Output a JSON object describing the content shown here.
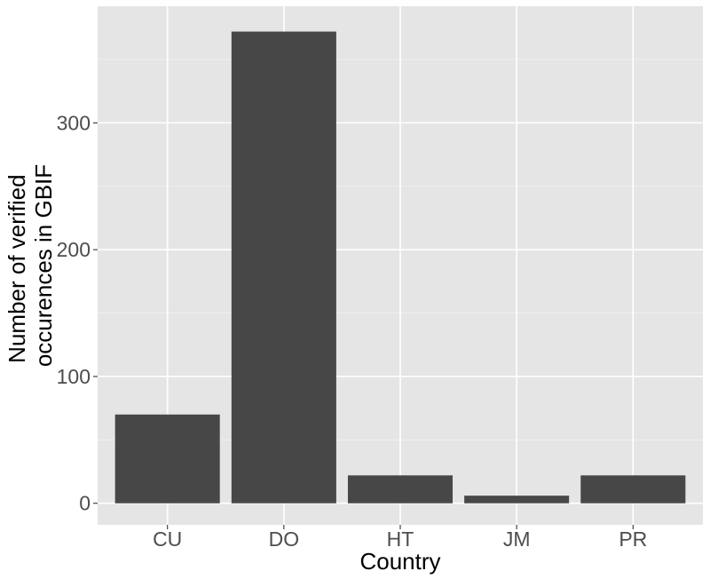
{
  "chart_data": {
    "type": "bar",
    "title": "",
    "xlabel": "Country",
    "ylabel_lines": [
      "Number of verified",
      "occurences in GBIF"
    ],
    "categories": [
      "CU",
      "DO",
      "HT",
      "JM",
      "PR"
    ],
    "values": [
      70,
      372,
      22,
      6,
      22
    ],
    "ylim": [
      -17,
      392
    ],
    "yticks": [
      0,
      100,
      200,
      300
    ],
    "grid": true,
    "legend": "none",
    "colors": {
      "panel": "#e5e5e5",
      "bar": "#474747",
      "grid": "#ffffff"
    }
  }
}
